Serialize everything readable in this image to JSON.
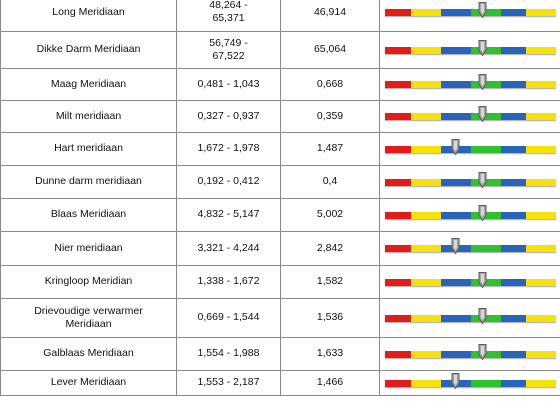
{
  "colors": {
    "red": "#e21b1b",
    "yellow": "#f4e20c",
    "blue": "#2a64b8",
    "green": "#2fc12f",
    "pointer": "#9a9a9a",
    "border": "#8a8a8a"
  },
  "rows": [
    {
      "name": "Long Meridiaan",
      "range": "48,264 -\n65,371",
      "value": "46,914",
      "gauge_percent": 57
    },
    {
      "name": "Dikke Darm Meridiaan",
      "range": "56,749 -\n67,522",
      "value": "65,064",
      "gauge_percent": 57
    },
    {
      "name": "Maag Meridiaan",
      "range": "0,481 - 1,043",
      "value": "0,668",
      "gauge_percent": 57
    },
    {
      "name": "Milt meridiaan",
      "range": "0,327 - 0,937",
      "value": "0,359",
      "gauge_percent": 57
    },
    {
      "name": "Hart meridiaan",
      "range": "1,672 - 1,978",
      "value": "1,487",
      "gauge_percent": 41
    },
    {
      "name": "Dunne darm meridiaan",
      "range": "0,192 - 0,412",
      "value": "0,4",
      "gauge_percent": 57
    },
    {
      "name": "Blaas Meridiaan",
      "range": "4,832 - 5,147",
      "value": "5,002",
      "gauge_percent": 57
    },
    {
      "name": "Nier meridiaan",
      "range": "3,321 - 4,244",
      "value": "2,842",
      "gauge_percent": 41
    },
    {
      "name": "Kringloop Meridian",
      "range": "1,338 - 1,672",
      "value": "1,582",
      "gauge_percent": 57
    },
    {
      "name": "Drievoudige verwarmer\nMeridiaan",
      "range": "0,669 - 1,544",
      "value": "1,536",
      "gauge_percent": 57
    },
    {
      "name": "Galblaas Meridiaan",
      "range": "1,554 - 1,988",
      "value": "1,633",
      "gauge_percent": 57
    },
    {
      "name": "Lever Meridiaan",
      "range": "1,553 - 2,187",
      "value": "1,466",
      "gauge_percent": 41
    }
  ]
}
